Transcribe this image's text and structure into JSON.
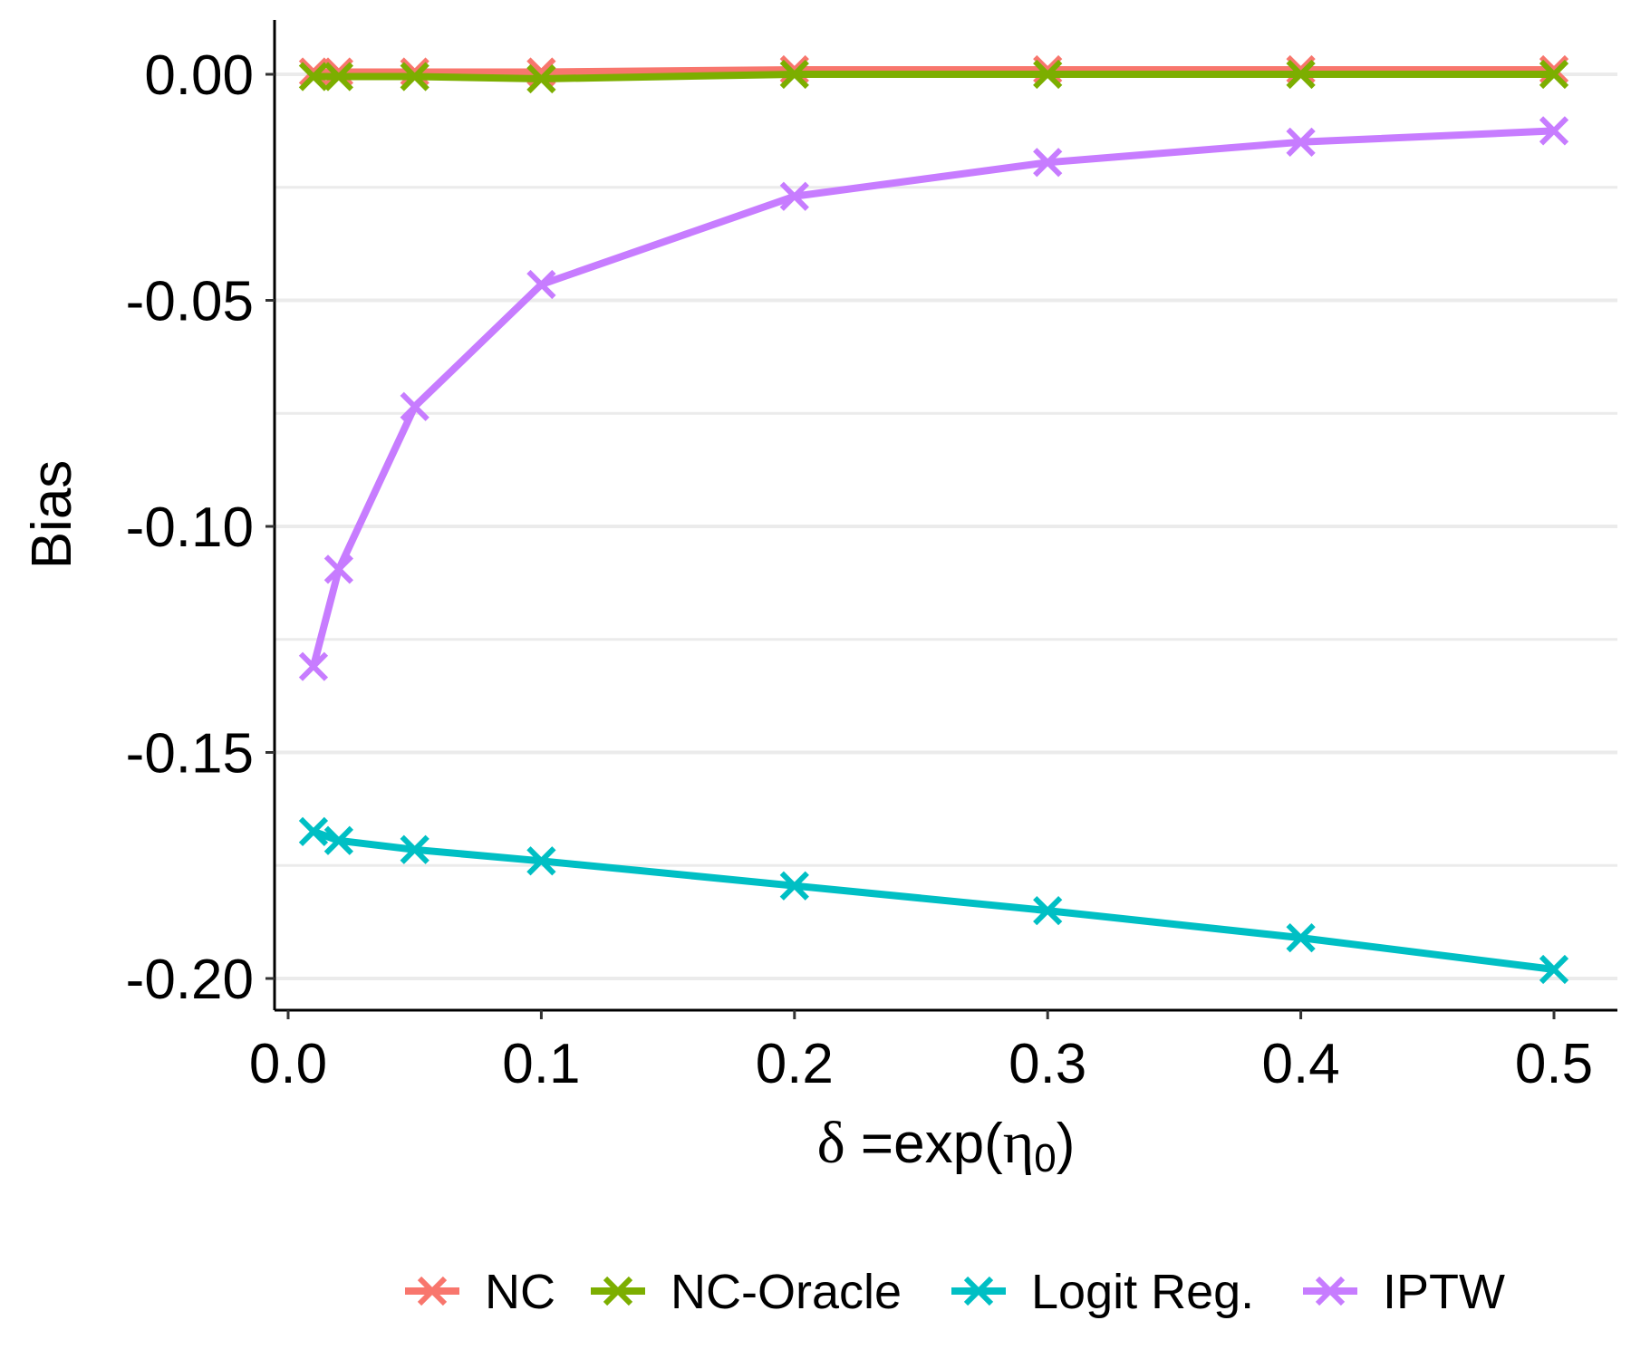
{
  "chart_data": {
    "type": "line",
    "xlabel": "δ =exp(η₀)",
    "xlabel_parts": {
      "delta": "δ",
      "mid": " =exp(",
      "eta": "η",
      "sub": "0",
      "close": ")"
    },
    "ylabel": "Bias",
    "xlim": [
      0,
      0.5
    ],
    "ylim": [
      -0.2,
      0
    ],
    "x_ticks": [
      0.0,
      0.1,
      0.2,
      0.3,
      0.4,
      0.5
    ],
    "x_tick_labels": [
      "0.0",
      "0.1",
      "0.2",
      "0.3",
      "0.4",
      "0.5"
    ],
    "y_ticks": [
      0.0,
      -0.05,
      -0.1,
      -0.15,
      -0.2
    ],
    "y_tick_labels": [
      "0.00",
      "-0.05",
      "-0.10",
      "-0.15",
      "-0.20"
    ],
    "grid": {
      "major_y": true,
      "minor_y": true,
      "x": false
    },
    "legend_position": "bottom",
    "x": [
      0.01,
      0.02,
      0.05,
      0.1,
      0.2,
      0.3,
      0.4,
      0.5
    ],
    "series": [
      {
        "name": "NC",
        "color": "#F8766D",
        "values": [
          0.0005,
          0.0005,
          0.0005,
          0.0005,
          0.001,
          0.001,
          0.001,
          0.001
        ]
      },
      {
        "name": "NC-Oracle",
        "color": "#7CAE00",
        "values": [
          -0.0005,
          -0.0005,
          -0.0005,
          -0.001,
          0.0,
          0.0,
          0.0,
          0.0
        ]
      },
      {
        "name": "Logit Reg.",
        "color": "#00BFC4",
        "values": [
          -0.1675,
          -0.1695,
          -0.1715,
          -0.174,
          -0.1795,
          -0.185,
          -0.191,
          -0.198
        ]
      },
      {
        "name": "IPTW",
        "color": "#C77CFF",
        "values": [
          -0.131,
          -0.1095,
          -0.0735,
          -0.0465,
          -0.027,
          -0.0195,
          -0.015,
          -0.0125
        ]
      }
    ]
  }
}
